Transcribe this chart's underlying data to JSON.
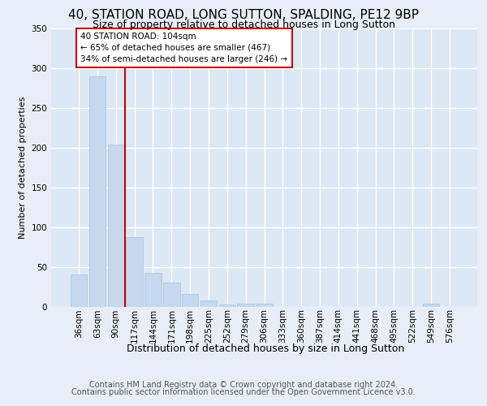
{
  "title1": "40, STATION ROAD, LONG SUTTON, SPALDING, PE12 9BP",
  "title2": "Size of property relative to detached houses in Long Sutton",
  "xlabel": "Distribution of detached houses by size in Long Sutton",
  "ylabel": "Number of detached properties",
  "footer1": "Contains HM Land Registry data © Crown copyright and database right 2024.",
  "footer2": "Contains public sector information licensed under the Open Government Licence v3.0.",
  "bar_labels": [
    "36sqm",
    "63sqm",
    "90sqm",
    "117sqm",
    "144sqm",
    "171sqm",
    "198sqm",
    "225sqm",
    "252sqm",
    "279sqm",
    "306sqm",
    "333sqm",
    "360sqm",
    "387sqm",
    "414sqm",
    "441sqm",
    "468sqm",
    "495sqm",
    "522sqm",
    "549sqm",
    "576sqm"
  ],
  "bar_values": [
    40,
    290,
    204,
    87,
    42,
    30,
    16,
    8,
    3,
    4,
    4,
    0,
    0,
    0,
    0,
    0,
    0,
    0,
    0,
    4,
    0
  ],
  "bar_color": "#c5d8ee",
  "bar_edge_color": "#a8c4dc",
  "vline_x": 2.5,
  "vline_color": "#cc0000",
  "annotation_line1": "40 STATION ROAD: 104sqm",
  "annotation_line2": "← 65% of detached houses are smaller (467)",
  "annotation_line3": "34% of semi-detached houses are larger (246) →",
  "annotation_box_edgecolor": "#cc0000",
  "ylim_max": 350,
  "yticks": [
    0,
    50,
    100,
    150,
    200,
    250,
    300,
    350
  ],
  "bg_color": "#e8eef8",
  "plot_bg_color": "#dce8f4",
  "grid_color": "#ffffff",
  "title1_fontsize": 11,
  "title2_fontsize": 9,
  "tick_fontsize": 7.5,
  "ylabel_fontsize": 8,
  "xlabel_fontsize": 9,
  "footer_fontsize": 7
}
